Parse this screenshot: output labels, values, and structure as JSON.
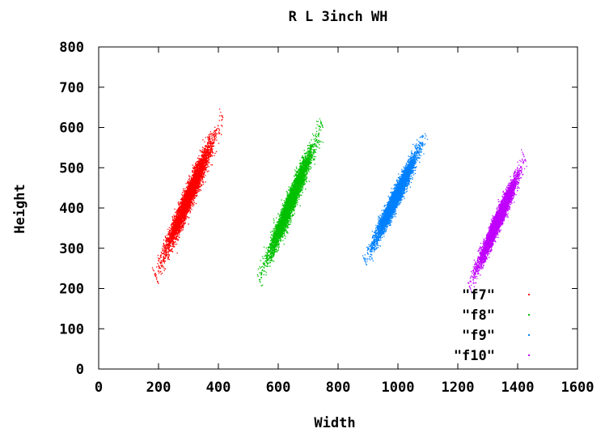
{
  "chart_data": {
    "type": "scatter",
    "title": "R L 3inch WH",
    "xlabel": "Width",
    "ylabel": "Height",
    "xlim": [
      0,
      1600
    ],
    "ylim": [
      0,
      800
    ],
    "xticks": [
      "0",
      "200",
      "400",
      "600",
      "800",
      "1000",
      "1200",
      "1400",
      "1600"
    ],
    "yticks": [
      "0",
      "100",
      "200",
      "300",
      "400",
      "500",
      "600",
      "700",
      "800"
    ],
    "grid": false,
    "legend_position": "bottom-right",
    "series": [
      {
        "name": "\"f7\"",
        "color": "#ff0000",
        "center": [
          300,
          430
        ],
        "x_range": [
          160,
          450
        ],
        "y_range": [
          200,
          650
        ],
        "approx_points": 5000
      },
      {
        "name": "\"f8\"",
        "color": "#00c000",
        "center": [
          640,
          415
        ],
        "x_range": [
          490,
          760
        ],
        "y_range": [
          200,
          640
        ],
        "approx_points": 5000
      },
      {
        "name": "\"f9\"",
        "color": "#0080ff",
        "center": [
          990,
          425
        ],
        "x_range": [
          840,
          1100
        ],
        "y_range": [
          240,
          600
        ],
        "approx_points": 5000
      },
      {
        "name": "\"f10\"",
        "color": "#c000ff",
        "center": [
          1330,
          365
        ],
        "x_range": [
          1200,
          1440
        ],
        "y_range": [
          220,
          580
        ],
        "approx_points": 5000
      }
    ]
  }
}
